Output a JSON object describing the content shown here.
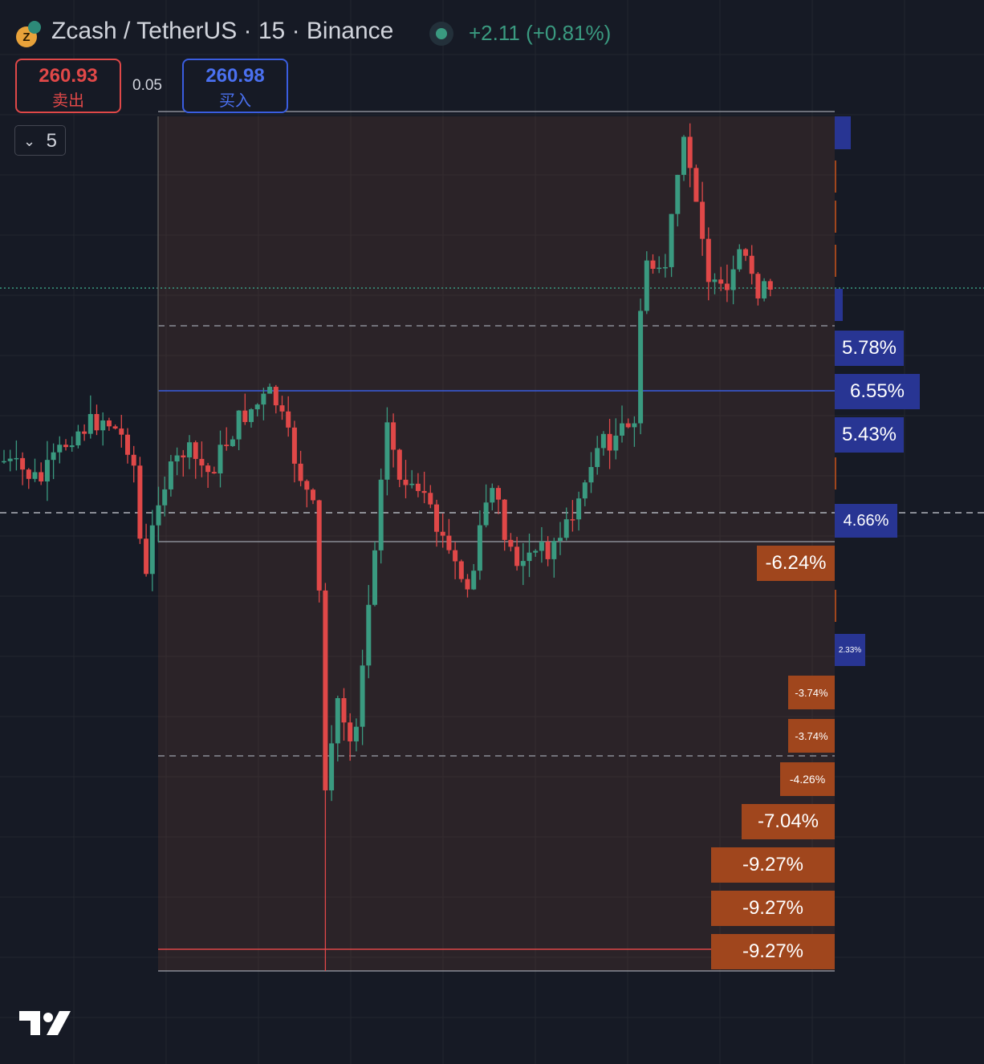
{
  "header": {
    "symbol": "Zcash / TetherUS · 15 · Binance",
    "change": "+2.11 (+0.81%)"
  },
  "order": {
    "sell_price": "260.93",
    "sell_label": "卖出",
    "spread": "0.05",
    "buy_price": "260.98",
    "buy_label": "买入"
  },
  "interval_menu": "5",
  "tags": [
    "5.78%",
    "6.55%",
    "5.43%",
    "4.66%",
    "-6.24%",
    "2.33%",
    "-3.74%",
    "-3.74%",
    "-4.26%",
    "-7.04%",
    "-9.27%",
    "-9.27%",
    "-9.27%"
  ]
}
